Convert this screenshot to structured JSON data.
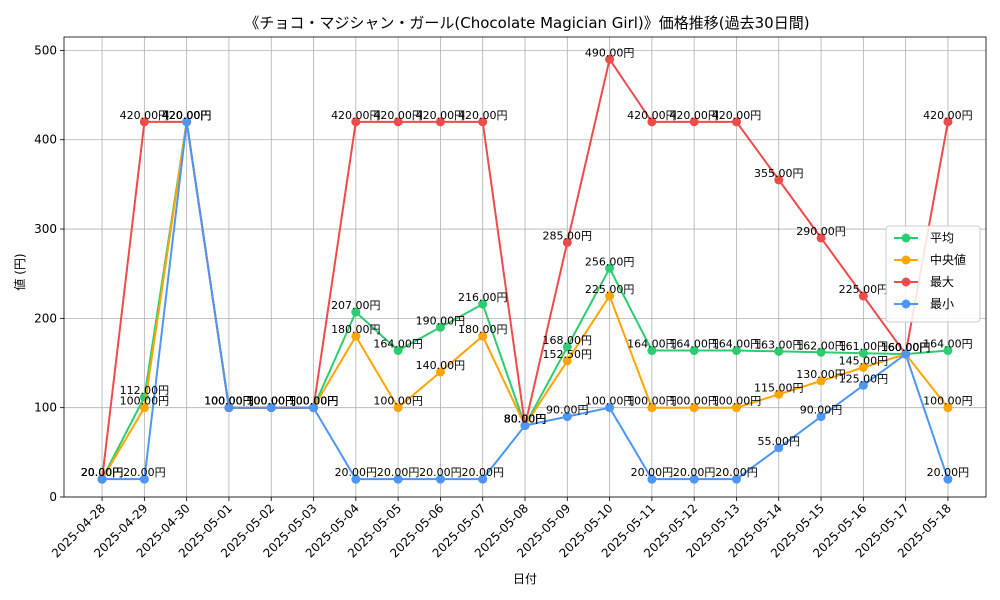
{
  "chart_data": {
    "type": "line",
    "title": "《チョコ・マジシャン・ガール(Chocolate Magician Girl)》価格推移(過去30日間)",
    "xlabel": "日付",
    "ylabel": "値 (円)",
    "ylim": [
      0,
      515
    ],
    "yticks": [
      0,
      100,
      200,
      300,
      400,
      500
    ],
    "grid": true,
    "legend_position": "right",
    "value_suffix": "円",
    "categories": [
      "2025-04-28",
      "2025-04-29",
      "2025-04-30",
      "2025-05-01",
      "2025-05-02",
      "2025-05-03",
      "2025-05-04",
      "2025-05-05",
      "2025-05-06",
      "2025-05-07",
      "2025-05-08",
      "2025-05-09",
      "2025-05-10",
      "2025-05-11",
      "2025-05-12",
      "2025-05-13",
      "2025-05-14",
      "2025-05-15",
      "2025-05-16",
      "2025-05-17",
      "2025-05-18"
    ],
    "series": [
      {
        "name": "平均",
        "color": "#2ecc71",
        "values": [
          20,
          112,
          420,
          100,
          100,
          100,
          207,
          164,
          190,
          216,
          80,
          168,
          256,
          164,
          164,
          164,
          163,
          162,
          161,
          160,
          164
        ]
      },
      {
        "name": "中央値",
        "color": "#ffa500",
        "values": [
          20,
          100,
          420,
          100,
          100,
          100,
          180,
          100,
          140,
          180,
          80,
          152.5,
          225,
          100,
          100,
          100,
          115,
          130,
          145,
          160,
          100
        ]
      },
      {
        "name": "最大",
        "color": "#ef4b4b",
        "values": [
          20,
          420,
          420,
          100,
          100,
          100,
          420,
          420,
          420,
          420,
          80,
          285,
          490,
          420,
          420,
          420,
          355,
          290,
          225,
          160,
          420
        ]
      },
      {
        "name": "最小",
        "color": "#4d96f5",
        "values": [
          20,
          20,
          420,
          100,
          100,
          100,
          20,
          20,
          20,
          20,
          80,
          90,
          100,
          20,
          20,
          20,
          55,
          90,
          125,
          160,
          20
        ]
      }
    ]
  }
}
